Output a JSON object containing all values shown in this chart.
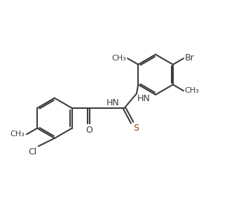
{
  "line_color": "#3d3d3d",
  "bg_color": "#ffffff",
  "s_color": "#8B4513",
  "lw": 1.5,
  "fs": 9,
  "fs_sub": 8,
  "xlim": [
    0,
    10
  ],
  "ylim": [
    0,
    9
  ]
}
